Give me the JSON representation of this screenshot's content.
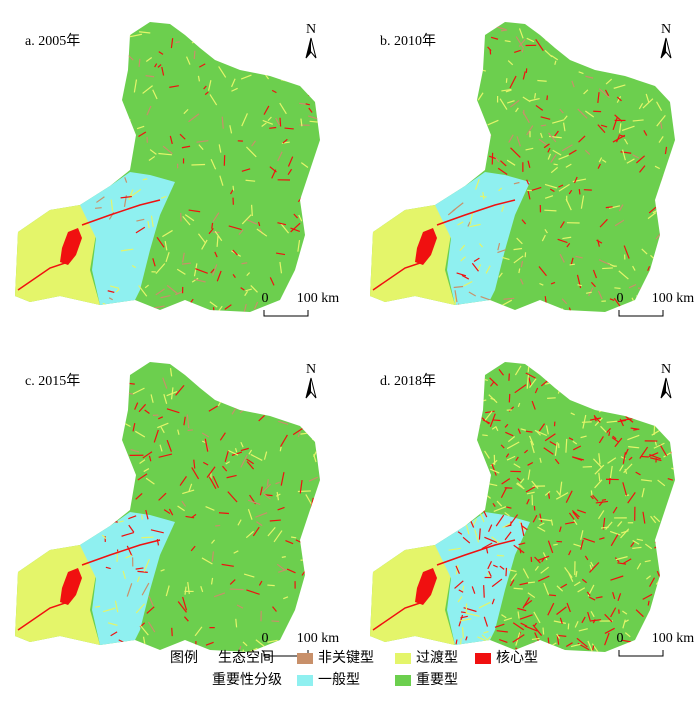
{
  "panels": [
    {
      "label": "a. 2005年",
      "north": "N",
      "scale_start": "0",
      "scale_end": "100 km"
    },
    {
      "label": "b. 2010年",
      "north": "N",
      "scale_start": "0",
      "scale_end": "100 km"
    },
    {
      "label": "c. 2015年",
      "north": "N",
      "scale_start": "0",
      "scale_end": "100 km"
    },
    {
      "label": "d. 2018年",
      "north": "N",
      "scale_start": "0",
      "scale_end": "100 km"
    }
  ],
  "legend": {
    "title": "图例",
    "heading_1": "生态空间",
    "heading_2": "重要性分级",
    "items": [
      {
        "label": "非关键型",
        "color": "#c8906a"
      },
      {
        "label": "过渡型",
        "color": "#e4f56a"
      },
      {
        "label": "核心型",
        "color": "#f01010"
      },
      {
        "label": "一般型",
        "color": "#8ff0f0"
      },
      {
        "label": "重要型",
        "color": "#6ccf4e"
      }
    ]
  }
}
